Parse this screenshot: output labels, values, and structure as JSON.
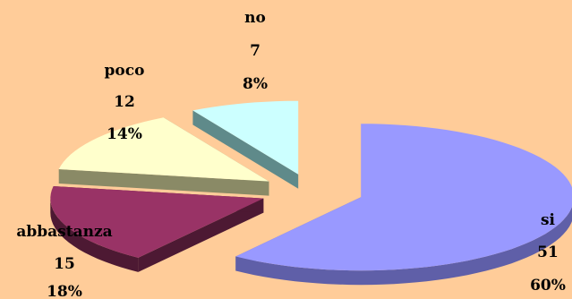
{
  "chart_data": {
    "type": "pie",
    "exploded": true,
    "three_d": true,
    "background": "#ffcc99",
    "slices": [
      {
        "label": "si",
        "value": 51,
        "percent": "60%",
        "color": "#9999ff",
        "side_color": "#5f5fa8"
      },
      {
        "label": "abbastanza",
        "value": 15,
        "percent": "18%",
        "color": "#993366",
        "side_color": "#4d1933"
      },
      {
        "label": "poco",
        "value": 12,
        "percent": "14%",
        "color": "#ffffcc",
        "side_color": "#8a8a66"
      },
      {
        "label": "no",
        "value": 7,
        "percent": "8%",
        "color": "#ccffff",
        "side_color": "#5f8a8a"
      }
    ]
  }
}
